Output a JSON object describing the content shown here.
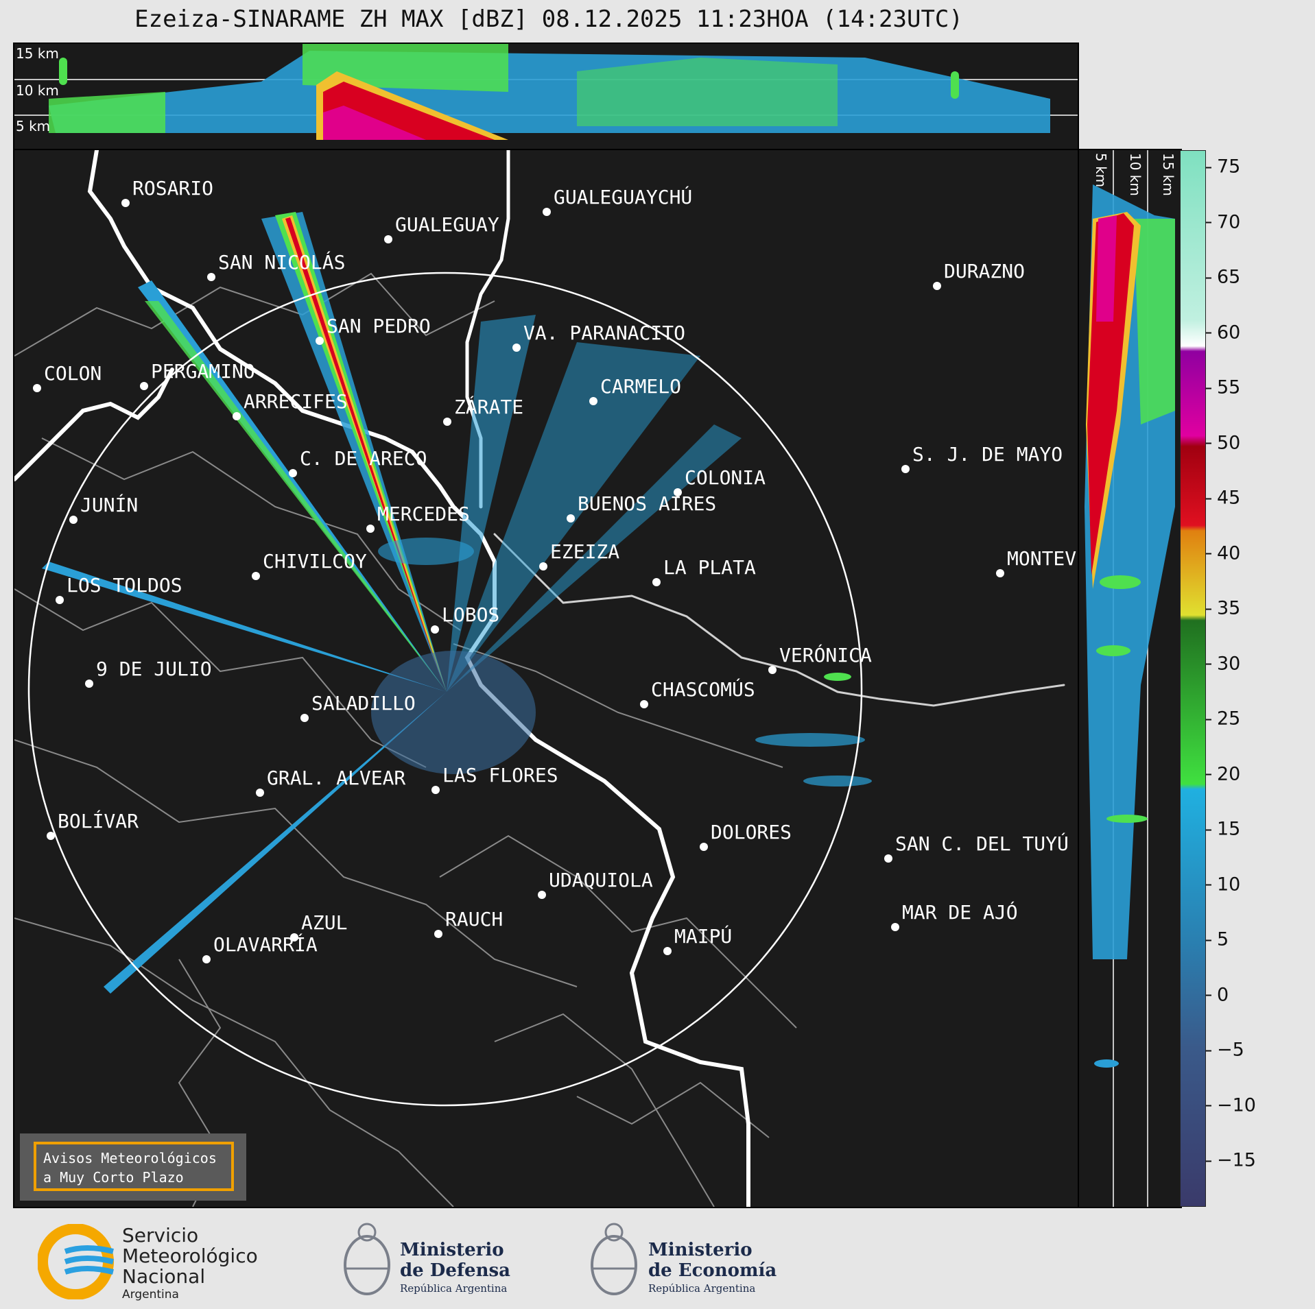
{
  "title": "Ezeiza-SINARAME ZH MAX [dBZ] 08.12.2025 11:23HOA (14:23UTC)",
  "top_panel": {
    "height_labels": [
      "15 km",
      "10 km",
      "5 km"
    ]
  },
  "side_panel": {
    "height_labels": [
      "5 km",
      "10 km",
      "15 km"
    ]
  },
  "colorbar": {
    "ticks": [
      "75",
      "70",
      "65",
      "60",
      "55",
      "50",
      "45",
      "40",
      "35",
      "30",
      "25",
      "20",
      "15",
      "10",
      "5",
      "0",
      "−5",
      "−10",
      "−15"
    ]
  },
  "cities": [
    {
      "name": "ROSARIO"
    },
    {
      "name": "GUALEGUAYCHÚ"
    },
    {
      "name": "GUALEGUAY"
    },
    {
      "name": "SAN NICOLÁS"
    },
    {
      "name": "DURAZNO"
    },
    {
      "name": "SAN PEDRO"
    },
    {
      "name": "VA. PARANACITO"
    },
    {
      "name": "COLON"
    },
    {
      "name": "PERGAMINO"
    },
    {
      "name": "CARMELO"
    },
    {
      "name": "ARRECIFES"
    },
    {
      "name": "ZÁRATE"
    },
    {
      "name": "C. DE ARECO"
    },
    {
      "name": "S. J. DE MAYO"
    },
    {
      "name": "COLONIA"
    },
    {
      "name": "JUNÍN"
    },
    {
      "name": "BUENOS AIRES"
    },
    {
      "name": "MERCEDES"
    },
    {
      "name": "EZEIZA"
    },
    {
      "name": "MONTEV"
    },
    {
      "name": "CHIVILCOY"
    },
    {
      "name": "LA PLATA"
    },
    {
      "name": "LOS TOLDOS"
    },
    {
      "name": "LOBOS"
    },
    {
      "name": "VERÓNICA"
    },
    {
      "name": "9 DE JULIO"
    },
    {
      "name": "CHASCOMÚS"
    },
    {
      "name": "SALADILLO"
    },
    {
      "name": "GRAL. ALVEAR"
    },
    {
      "name": "LAS FLORES"
    },
    {
      "name": "BOLÍVAR"
    },
    {
      "name": "DOLORES"
    },
    {
      "name": "SAN C. DEL TUYÚ"
    },
    {
      "name": "UDAQUIOLA"
    },
    {
      "name": "MAR DE AJÓ"
    },
    {
      "name": "AZUL"
    },
    {
      "name": "RAUCH"
    },
    {
      "name": "MAIPÚ"
    },
    {
      "name": "OLAVARRÍA"
    }
  ],
  "warning": {
    "line1": "Avisos Meteorológicos",
    "line2": "a Muy Corto Plazo"
  },
  "footer": {
    "smn": {
      "l1": "Servicio",
      "l2": "Meteorológico",
      "l3": "Nacional",
      "l4": "Argentina"
    },
    "defensa": {
      "l1": "Ministerio",
      "l2": "de Defensa",
      "l3": "República Argentina"
    },
    "economia": {
      "l1": "Ministerio",
      "l2": "de Economía",
      "l3": "República Argentina"
    }
  },
  "colors": {
    "background": "#1b1b1b",
    "page": "#e6e6e6",
    "warning_border": "#f0a000"
  }
}
